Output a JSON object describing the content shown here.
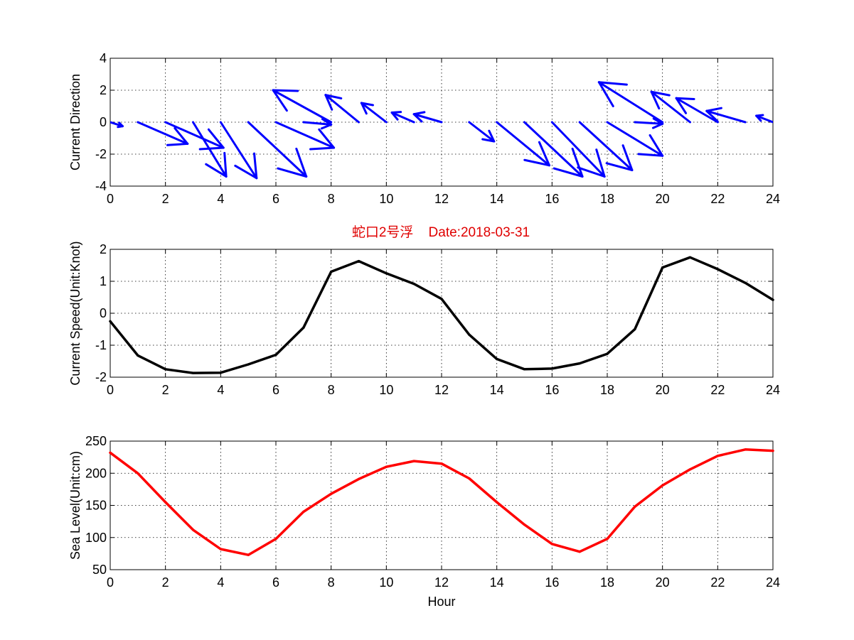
{
  "figure": {
    "title": "蛇口2号浮    Date:2018-03-31",
    "title_color": "#e00000"
  },
  "chart_data": [
    {
      "type": "quiver",
      "ylabel": "Current Direction",
      "xlim": [
        0,
        24
      ],
      "ylim": [
        -4,
        4
      ],
      "xticks": [
        "0",
        "2",
        "4",
        "6",
        "8",
        "10",
        "12",
        "14",
        "16",
        "18",
        "20",
        "22",
        "24"
      ],
      "yticks": [
        "4",
        "2",
        "0",
        "-2",
        "-4"
      ],
      "grid": true,
      "color": "#0000ff",
      "vectors": [
        {
          "x": 0,
          "u": 0.45,
          "v": -0.25
        },
        {
          "x": 1,
          "u": 1.8,
          "v": -1.35
        },
        {
          "x": 2,
          "u": 2.1,
          "v": -1.6
        },
        {
          "x": 3,
          "u": 1.2,
          "v": -3.4
        },
        {
          "x": 4,
          "u": 1.3,
          "v": -3.5
        },
        {
          "x": 5,
          "u": 2.1,
          "v": -3.4
        },
        {
          "x": 6,
          "u": 2.1,
          "v": -1.6
        },
        {
          "x": 7,
          "u": 1.0,
          "v": -0.15
        },
        {
          "x": 8,
          "u": -2.1,
          "v": 2.0
        },
        {
          "x": 9,
          "u": -1.2,
          "v": 1.7
        },
        {
          "x": 10,
          "u": -0.9,
          "v": 1.2
        },
        {
          "x": 11,
          "u": -0.8,
          "v": 0.6
        },
        {
          "x": 12,
          "u": -1.0,
          "v": 0.5
        },
        {
          "x": 13,
          "u": 0.9,
          "v": -1.2
        },
        {
          "x": 14,
          "u": 1.9,
          "v": -2.7
        },
        {
          "x": 15,
          "u": 2.1,
          "v": -3.4
        },
        {
          "x": 16,
          "u": 1.9,
          "v": -3.4
        },
        {
          "x": 17,
          "u": 1.9,
          "v": -3.0
        },
        {
          "x": 18,
          "u": 2.0,
          "v": -2.1
        },
        {
          "x": 19,
          "u": 1.0,
          "v": -0.1
        },
        {
          "x": 20,
          "u": -2.3,
          "v": 2.5
        },
        {
          "x": 21,
          "u": -1.4,
          "v": 1.9
        },
        {
          "x": 22,
          "u": -1.5,
          "v": 1.5
        },
        {
          "x": 23,
          "u": -1.4,
          "v": 0.7
        },
        {
          "x": 24,
          "u": -0.6,
          "v": 0.4
        }
      ]
    },
    {
      "type": "line",
      "ylabel": "Current Speed(Unit:Knot)",
      "xlim": [
        0,
        24
      ],
      "ylim": [
        -2,
        2
      ],
      "xticks": [
        "0",
        "2",
        "4",
        "6",
        "8",
        "10",
        "12",
        "14",
        "16",
        "18",
        "20",
        "22",
        "24"
      ],
      "yticks": [
        "2",
        "1",
        "0",
        "-1",
        "-2"
      ],
      "grid": true,
      "color": "#000000",
      "x": [
        0,
        1,
        2,
        3,
        4,
        5,
        6,
        7,
        8,
        9,
        10,
        11,
        12,
        13,
        14,
        15,
        16,
        17,
        18,
        19,
        20,
        21,
        22,
        23,
        24
      ],
      "y": [
        -0.25,
        -1.32,
        -1.75,
        -1.87,
        -1.86,
        -1.6,
        -1.3,
        -0.45,
        1.3,
        1.63,
        1.25,
        0.92,
        0.45,
        -0.67,
        -1.43,
        -1.75,
        -1.73,
        -1.57,
        -1.27,
        -0.5,
        1.43,
        1.75,
        1.38,
        0.95,
        0.42
      ]
    },
    {
      "type": "line",
      "ylabel": "Sea Level(Unit:cm)",
      "xlabel": "Hour",
      "xlim": [
        0,
        24
      ],
      "ylim": [
        50,
        250
      ],
      "xticks": [
        "0",
        "2",
        "4",
        "6",
        "8",
        "10",
        "12",
        "14",
        "16",
        "18",
        "20",
        "22",
        "24"
      ],
      "yticks": [
        "250",
        "200",
        "150",
        "100",
        "50"
      ],
      "grid": true,
      "color": "#ff0000",
      "x": [
        0,
        1,
        2,
        3,
        4,
        5,
        6,
        7,
        8,
        9,
        10,
        11,
        12,
        13,
        14,
        15,
        16,
        17,
        18,
        19,
        20,
        21,
        22,
        23,
        24
      ],
      "y": [
        232,
        200,
        155,
        112,
        82,
        73,
        98,
        140,
        168,
        191,
        210,
        219,
        215,
        192,
        155,
        120,
        90,
        78,
        98,
        148,
        181,
        206,
        227,
        237,
        235
      ]
    }
  ]
}
